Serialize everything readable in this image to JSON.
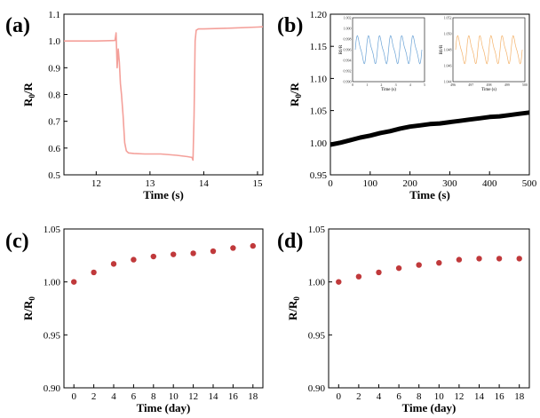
{
  "chart_data": [
    {
      "id": "a",
      "panel_label": "(a)",
      "type": "line",
      "xlabel": "Time (s)",
      "ylabel_main": "R",
      "ylabel_sub": "0",
      "ylabel_tail": "/R",
      "xlim": [
        11.4,
        15.1
      ],
      "ylim": [
        0.5,
        1.1
      ],
      "xticks": [
        12,
        13,
        14,
        15
      ],
      "yticks": [
        0.5,
        0.6,
        0.7,
        0.8,
        0.9,
        1.0,
        1.1
      ],
      "xtick_labels": [
        "12",
        "13",
        "14",
        "15"
      ],
      "ytick_labels": [
        "0.5",
        "0.6",
        "0.7",
        "0.8",
        "0.9",
        "1.0",
        "1.1"
      ],
      "color": "#f4a09a",
      "series": [
        {
          "x": [
            11.4,
            12.0,
            12.35,
            12.37,
            12.39,
            12.41,
            12.43,
            12.45,
            12.47,
            12.5,
            12.53,
            12.56,
            12.6,
            12.7,
            12.9,
            13.2,
            13.5,
            13.7,
            13.78,
            13.8,
            13.82,
            13.84,
            13.86,
            13.9,
            14.0,
            14.5,
            15.0,
            15.1
          ],
          "y": [
            1.0,
            1.0,
            1.002,
            1.03,
            0.9,
            0.97,
            0.92,
            0.84,
            0.8,
            0.72,
            0.62,
            0.59,
            0.582,
            0.58,
            0.578,
            0.578,
            0.573,
            0.568,
            0.565,
            0.555,
            0.72,
            1.0,
            1.04,
            1.045,
            1.045,
            1.048,
            1.052,
            1.053
          ]
        }
      ]
    },
    {
      "id": "b",
      "panel_label": "(b)",
      "type": "line",
      "xlabel": "Time (s)",
      "ylabel_main": "R",
      "ylabel_sub": "0",
      "ylabel_tail": "/R",
      "xlim": [
        0,
        500
      ],
      "ylim": [
        0.95,
        1.2
      ],
      "xticks": [
        0,
        100,
        200,
        300,
        400,
        500
      ],
      "yticks": [
        0.95,
        1.0,
        1.05,
        1.1,
        1.15,
        1.2
      ],
      "xtick_labels": [
        "0",
        "100",
        "200",
        "300",
        "400",
        "500"
      ],
      "ytick_labels": [
        "0.95",
        "1.00",
        "1.05",
        "1.10",
        "1.15",
        "1.20"
      ],
      "color": "#000000",
      "series": [
        {
          "x": [
            0,
            25,
            50,
            75,
            100,
            125,
            150,
            175,
            200,
            225,
            250,
            275,
            300,
            325,
            350,
            375,
            400,
            425,
            450,
            475,
            500
          ],
          "y": [
            0.997,
            1.0,
            1.004,
            1.008,
            1.011,
            1.015,
            1.018,
            1.022,
            1.025,
            1.027,
            1.029,
            1.03,
            1.032,
            1.034,
            1.036,
            1.038,
            1.04,
            1.041,
            1.043,
            1.045,
            1.047
          ]
        }
      ],
      "insets": [
        {
          "id": "b-inset-1",
          "color": "#6ba3d6",
          "xlabel": "Time (s)",
          "ylabel": "R0/R",
          "xtick_labels": [
            "0",
            "1",
            "2",
            "3",
            "4",
            "5"
          ],
          "ytick_labels": [
            "0.990",
            "0.992",
            "0.994",
            "0.996",
            "0.998",
            "1.000",
            "1.002"
          ]
        },
        {
          "id": "b-inset-2",
          "color": "#f4b26a",
          "xlabel": "Time (s)",
          "ylabel": "R0/R",
          "xtick_labels": [
            "496",
            "497",
            "498",
            "499",
            "500"
          ],
          "ytick_labels": [
            "1.044",
            "1.046",
            "1.048",
            "1.050",
            "1.052"
          ]
        }
      ]
    },
    {
      "id": "c",
      "panel_label": "(c)",
      "type": "scatter",
      "xlabel": "Time (day)",
      "ylabel_main": "R/R",
      "ylabel_sub": "0",
      "ylabel_tail": "",
      "xlim": [
        -1,
        19
      ],
      "ylim": [
        0.9,
        1.05
      ],
      "xticks": [
        0,
        2,
        4,
        6,
        8,
        10,
        12,
        14,
        16,
        18
      ],
      "yticks": [
        0.9,
        0.95,
        1.0,
        1.05
      ],
      "xtick_labels": [
        "0",
        "2",
        "4",
        "6",
        "8",
        "10",
        "12",
        "14",
        "16",
        "18"
      ],
      "ytick_labels": [
        "0.90",
        "0.95",
        "1.00",
        "1.05"
      ],
      "color": "#c0393b",
      "series": [
        {
          "x": [
            0,
            2,
            4,
            6,
            8,
            10,
            12,
            14,
            16,
            18
          ],
          "y": [
            1.0,
            1.009,
            1.017,
            1.021,
            1.024,
            1.026,
            1.027,
            1.029,
            1.032,
            1.034
          ]
        }
      ]
    },
    {
      "id": "d",
      "panel_label": "(d)",
      "type": "scatter",
      "xlabel": "Time (day)",
      "ylabel_main": "R/R",
      "ylabel_sub": "0",
      "ylabel_tail": "",
      "xlim": [
        -1,
        19
      ],
      "ylim": [
        0.9,
        1.05
      ],
      "xticks": [
        0,
        2,
        4,
        6,
        8,
        10,
        12,
        14,
        16,
        18
      ],
      "yticks": [
        0.9,
        0.95,
        1.0,
        1.05
      ],
      "xtick_labels": [
        "0",
        "2",
        "4",
        "6",
        "8",
        "10",
        "12",
        "14",
        "16",
        "18"
      ],
      "ytick_labels": [
        "0.90",
        "0.95",
        "1.00",
        "1.05"
      ],
      "color": "#c0393b",
      "series": [
        {
          "x": [
            0,
            2,
            4,
            6,
            8,
            10,
            12,
            14,
            16,
            18
          ],
          "y": [
            1.0,
            1.005,
            1.009,
            1.013,
            1.016,
            1.018,
            1.021,
            1.022,
            1.022,
            1.022
          ]
        }
      ]
    }
  ]
}
